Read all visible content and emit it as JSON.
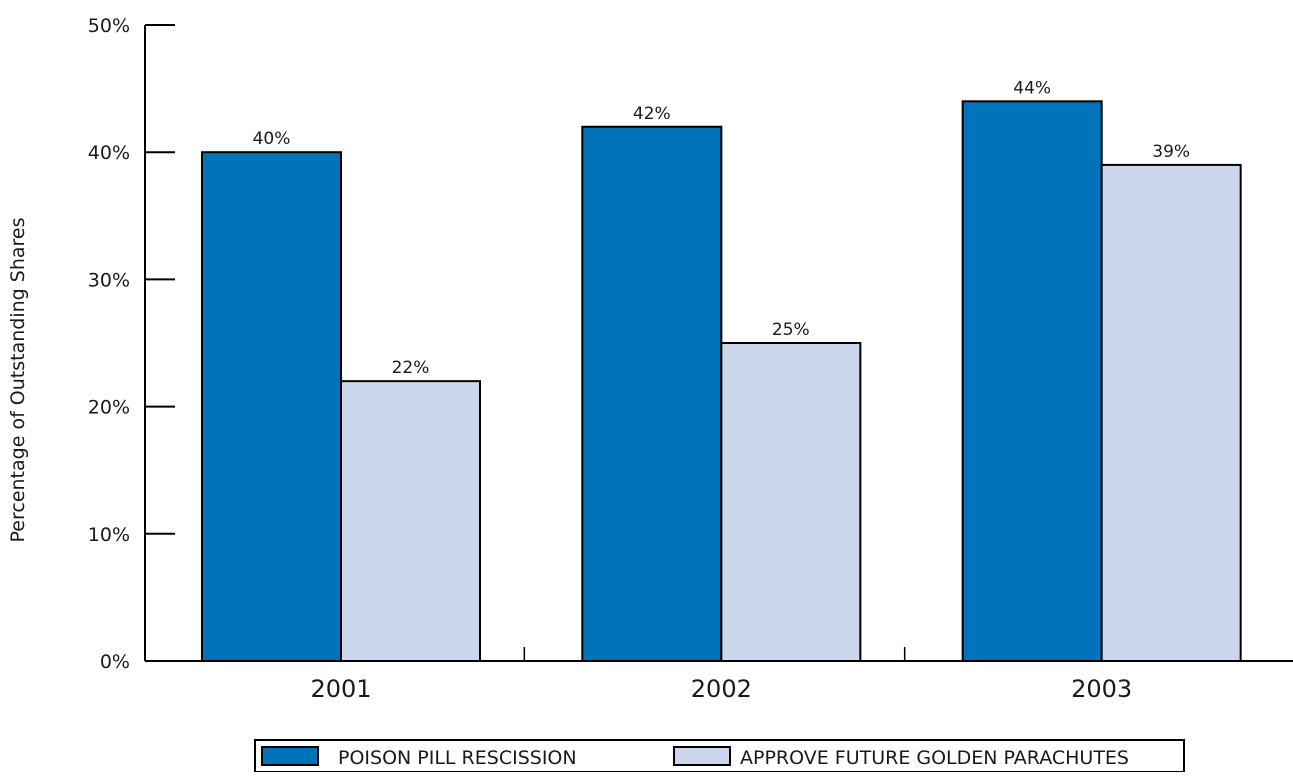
{
  "chart_data": {
    "type": "bar",
    "title": "",
    "xlabel": "",
    "ylabel": "Percentage of Outstanding Shares",
    "ylim": [
      0,
      50
    ],
    "yticks": [
      "0%",
      "10%",
      "20%",
      "30%",
      "40%",
      "50%"
    ],
    "ytick_values": [
      0,
      10,
      20,
      30,
      40,
      50
    ],
    "categories": [
      "2001",
      "2002",
      "2003"
    ],
    "series": [
      {
        "name": "POISON PILL RESCISSION",
        "values": [
          40,
          42,
          44
        ],
        "labels": [
          "40%",
          "42%",
          "44%"
        ],
        "color": "#0073bb"
      },
      {
        "name": "APPROVE FUTURE GOLDEN PARACHUTES",
        "values": [
          22,
          25,
          39
        ],
        "labels": [
          "22%",
          "25%",
          "39%"
        ],
        "color": "#ccd6ec"
      }
    ],
    "grid": false,
    "legend_position": "bottom"
  }
}
